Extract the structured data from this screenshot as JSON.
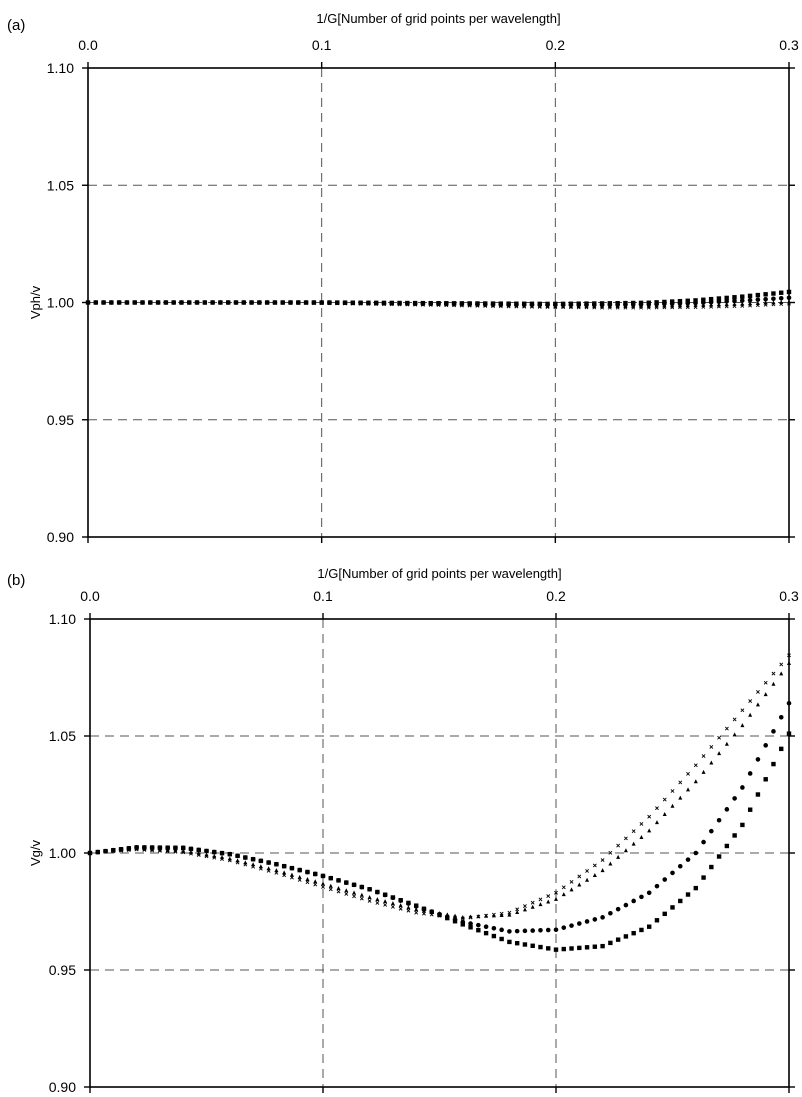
{
  "chart_data": [
    {
      "panel_label": "(a)",
      "type": "scatter",
      "xlabel": "1/G[Number of grid points per wavelength]",
      "ylabel": "Vph/v",
      "xlim": [
        0.0,
        0.3
      ],
      "ylim": [
        0.9,
        1.1
      ],
      "xticks": [
        "0.0",
        "0.1",
        "0.2",
        "0.3"
      ],
      "yticks": [
        "0.90",
        "0.95",
        "1.00",
        "1.05",
        "1.10"
      ],
      "x_axis_position": "top",
      "grid": "dashed",
      "series": [
        {
          "marker": "square",
          "x": [
            0.0,
            0.05,
            0.1,
            0.15,
            0.18,
            0.2,
            0.22,
            0.24,
            0.26,
            0.28,
            0.3
          ],
          "y": [
            1.0,
            1.0,
            1.0,
            0.9997,
            0.9995,
            0.9994,
            0.9996,
            0.9999,
            1.0009,
            1.0025,
            1.0045
          ]
        },
        {
          "marker": "circle",
          "x": [
            0.0,
            0.05,
            0.1,
            0.15,
            0.18,
            0.2,
            0.22,
            0.24,
            0.26,
            0.28,
            0.3
          ],
          "y": [
            1.0,
            1.0,
            1.0,
            0.9995,
            0.9992,
            0.999,
            0.999,
            0.9992,
            0.9998,
            1.0008,
            1.002
          ]
        },
        {
          "marker": "triangle",
          "x": [
            0.0,
            0.05,
            0.1,
            0.15,
            0.18,
            0.2,
            0.22,
            0.24,
            0.26,
            0.28,
            0.3
          ],
          "y": [
            1.0,
            1.0,
            0.9998,
            0.9992,
            0.9987,
            0.9984,
            0.9983,
            0.9984,
            0.9987,
            0.9993,
            1.0002
          ]
        },
        {
          "marker": "cross",
          "x": [
            0.0,
            0.05,
            0.1,
            0.15,
            0.18,
            0.2,
            0.22,
            0.24,
            0.26,
            0.28,
            0.3
          ],
          "y": [
            1.0,
            1.0,
            0.9997,
            0.9989,
            0.9983,
            0.998,
            0.9978,
            0.9978,
            0.998,
            0.9985,
            0.9995
          ]
        }
      ]
    },
    {
      "panel_label": "(b)",
      "type": "scatter",
      "xlabel": "1/G[Number of grid points per wavelength]",
      "ylabel": "Vg/v",
      "xlim": [
        0.0,
        0.3
      ],
      "ylim": [
        0.9,
        1.1
      ],
      "xticks": [
        "0.0",
        "0.1",
        "0.2",
        "0.3"
      ],
      "yticks": [
        "0.90",
        "0.95",
        "1.00",
        "1.05",
        "1.10"
      ],
      "x_axis_position": "top",
      "grid": "dashed",
      "series": [
        {
          "marker": "square",
          "x": [
            0.0,
            0.02,
            0.04,
            0.06,
            0.08,
            0.1,
            0.12,
            0.14,
            0.16,
            0.18,
            0.2,
            0.22,
            0.24,
            0.26,
            0.28,
            0.3
          ],
          "y": [
            1.0,
            1.0024,
            1.0022,
            0.9995,
            0.9952,
            0.9902,
            0.9845,
            0.9775,
            0.9695,
            0.962,
            0.9587,
            0.9602,
            0.9685,
            0.985,
            1.012,
            1.051
          ]
        },
        {
          "marker": "circle",
          "x": [
            0.0,
            0.02,
            0.04,
            0.06,
            0.08,
            0.1,
            0.12,
            0.14,
            0.16,
            0.18,
            0.2,
            0.22,
            0.24,
            0.26,
            0.28,
            0.3
          ],
          "y": [
            1.0,
            1.0024,
            1.0022,
            0.9995,
            0.9952,
            0.9902,
            0.9845,
            0.9772,
            0.9705,
            0.9665,
            0.9672,
            0.9725,
            0.983,
            1.0,
            1.028,
            1.064
          ]
        },
        {
          "marker": "triangle",
          "x": [
            0.0,
            0.02,
            0.04,
            0.06,
            0.08,
            0.1,
            0.12,
            0.14,
            0.16,
            0.18,
            0.2,
            0.22,
            0.24,
            0.26,
            0.28,
            0.3
          ],
          "y": [
            1.0,
            1.0018,
            1.0008,
            0.9975,
            0.9925,
            0.9868,
            0.981,
            0.9758,
            0.9725,
            0.9735,
            0.9802,
            0.9925,
            1.0095,
            1.0305,
            1.0545,
            1.081
          ]
        },
        {
          "marker": "cross",
          "x": [
            0.0,
            0.02,
            0.04,
            0.06,
            0.08,
            0.1,
            0.12,
            0.14,
            0.16,
            0.18,
            0.2,
            0.22,
            0.24,
            0.26,
            0.28,
            0.3
          ],
          "y": [
            1.0,
            1.0015,
            1.0003,
            0.9968,
            0.9915,
            0.9855,
            0.9795,
            0.9745,
            0.972,
            0.9745,
            0.983,
            0.997,
            1.0155,
            1.0375,
            1.061,
            1.0845
          ]
        }
      ]
    }
  ]
}
